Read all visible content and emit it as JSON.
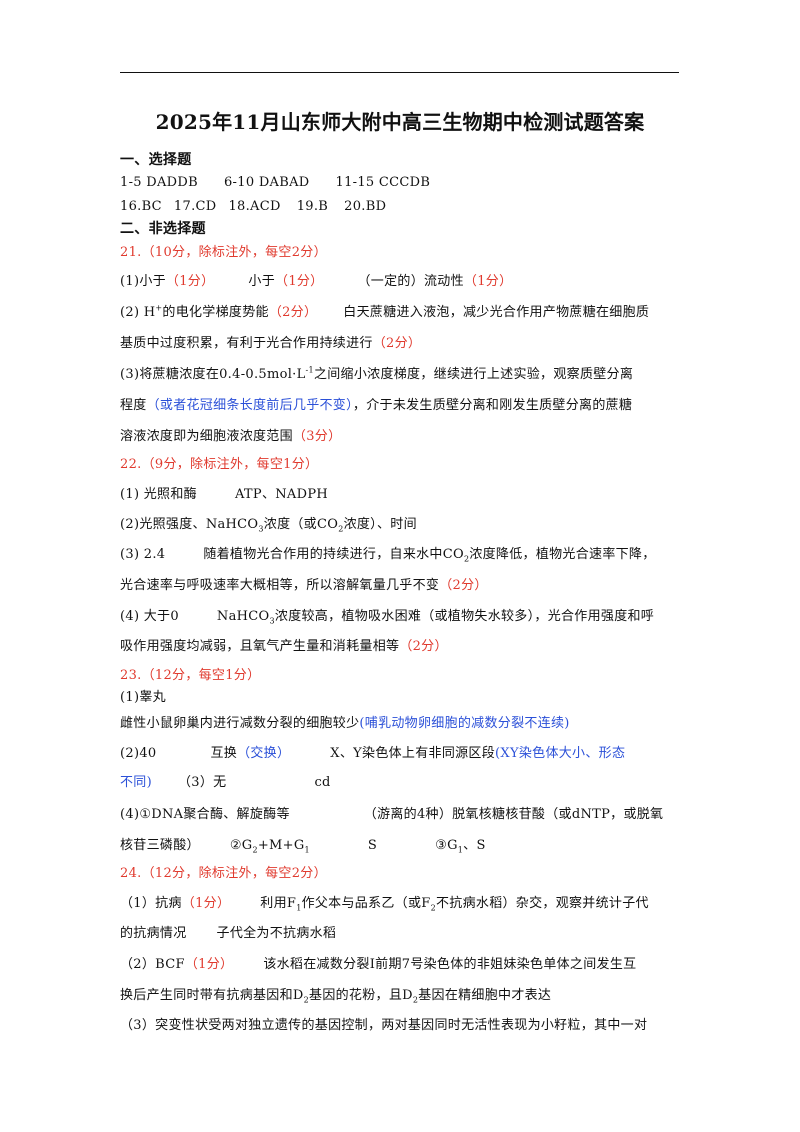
{
  "title": "2025年11月山东师大附中高三生物期中检测试题答案",
  "s1": {
    "heading": "一、选择题",
    "a1": "1-5 DADDB",
    "a2": "6-10 DABAD",
    "a3": "11-15 CCCDB",
    "b1": "16.BC",
    "b2": "17.CD",
    "b3": "18.ACD",
    "b4": "19.B",
    "b5": "20.BD"
  },
  "s2": {
    "heading": "二、非选择题"
  },
  "q21": {
    "header": "21.（10分，除标注外，每空2分）",
    "l1_a": "(1)小于",
    "l1_a_pts": "（1分）",
    "l1_b": "小于",
    "l1_b_pts": "（1分）",
    "l1_c": "（一定的）流动性",
    "l1_c_pts": "（1分）",
    "l2_a": "(2) H",
    "l2_sup": "+",
    "l2_b": "的电化学梯度势能",
    "l2_pts": "（2分）",
    "l2_c": "白天蔗糖进入液泡，减少光合作用产物蔗糖在细胞质",
    "l3_a": "基质中过度积累，有利于光合作用持续进行",
    "l3_pts": "（2分）",
    "l4_a": "(3)将蔗糖浓度在0.4-0.5mol·L",
    "l4_sup": "-1",
    "l4_b": "之间缩小浓度梯度，继续进行上述实验，观察质壁分离",
    "l5_a": "程度",
    "l5_blue": "（或者花冠细条长度前后几乎不变）",
    "l5_b": "，介于未发生质壁分离和刚发生质壁分离的蔗糖",
    "l6_a": "溶液浓度即为细胞液浓度范围",
    "l6_pts": "（3分）"
  },
  "q22": {
    "header": "22.（9分，除标注外，每空1分）",
    "l1_a": "(1) 光照和酶",
    "l1_b": "ATP、NADPH",
    "l2_a": "(2)光照强度、NaHCO",
    "l2_sub": "3",
    "l2_b": "浓度（或CO",
    "l2_sub2": "2",
    "l2_c": "浓度）、时间",
    "l3_a": "(3) 2.4",
    "l3_b": "随着植物光合作用的持续进行，自来水中CO",
    "l3_sub": "2",
    "l3_c": "浓度降低，植物光合速率下降，",
    "l4_a": "光合速率与呼吸速率大概相等，所以溶解氧量几乎不变",
    "l4_pts": "（2分）",
    "l5_a": "(4) 大于0",
    "l5_b": "NaHCO",
    "l5_sub": "3",
    "l5_c": "浓度较高，植物吸水困难（或植物失水较多），光合作用强度和呼",
    "l6_a": "吸作用强度均减弱，且氧气产生量和消耗量相等",
    "l6_pts": "（2分）"
  },
  "q23": {
    "header": "23.（12分，每空1分）",
    "l1": "(1)睾丸",
    "l2_a": "雌性小鼠卵巢内进行减数分裂的细胞较少",
    "l2_blue": "(哺乳动物卵细胞的减数分裂不连续)",
    "l3_a": "(2)40",
    "l3_b": "互换",
    "l3_blue1": "（交换）",
    "l3_c": "X、Y染色体上有非同源区段",
    "l3_blue2": "(XY染色体大小、形态",
    "l4_blue": "不同)",
    "l4_a": "（3）无",
    "l4_b": "cd",
    "l5_a": "(4)①DNA聚合酶、解旋酶等",
    "l5_b": "（游离的4种）脱氧核糖核苷酸（或dNTP，或脱氧",
    "l6_a": "核苷三磷酸）",
    "l6_b": "②G",
    "l6_sub1": "2",
    "l6_c": "+M+G",
    "l6_sub2": "1",
    "l6_d": "S",
    "l6_e": "③G",
    "l6_sub3": "1",
    "l6_f": "、S"
  },
  "q24": {
    "header": "24.（12分，除标注外，每空2分）",
    "l1_a": "（1）抗病",
    "l1_pts": "（1分）",
    "l1_b": "利用F",
    "l1_sub1": "1",
    "l1_c": "作父本与品系乙（或F",
    "l1_sub2": "2",
    "l1_d": "不抗病水稻）杂交，观察并统计子代",
    "l2_a": "的抗病情况",
    "l2_b": "子代全为不抗病水稻",
    "l3_a": "（2）BCF",
    "l3_pts": "（1分）",
    "l3_b": "该水稻在减数分裂Ⅰ前期7号染色体的非姐妹染色单体之间发生互",
    "l4_a": "换后产生同时带有抗病基因和D",
    "l4_sub1": "2",
    "l4_b": "基因的花粉，且D",
    "l4_sub2": "2",
    "l4_c": "基因在精细胞中才表达",
    "l5": "（3）突变性状受两对独立遗传的基因控制，两对基因同时无活性表现为小籽粒，其中一对"
  }
}
